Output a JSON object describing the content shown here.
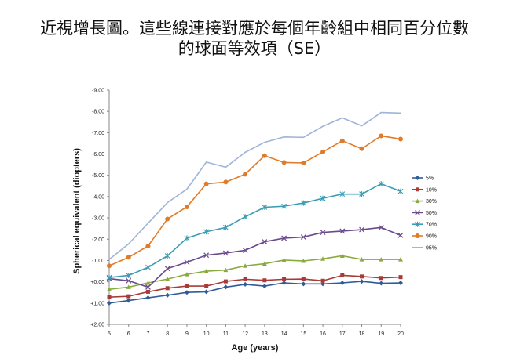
{
  "title_line1": "近視增長圖。這些線連接對應於每個年齡組中相同百分位數",
  "title_line2": "的球面等效項（SE）",
  "chart_data": {
    "type": "line",
    "title": "近視增長圖。這些線連接對應於每個年齡組中相同百分位數的球面等效項（SE）",
    "xlabel": "Age (years)",
    "ylabel": "Spherical equivalent (diopters)",
    "x": [
      5,
      6,
      7,
      8,
      9,
      10,
      11,
      12,
      13,
      14,
      15,
      16,
      17,
      18,
      19,
      20
    ],
    "ylim": [
      2.0,
      -9.0
    ],
    "y_inverted": true,
    "yticks": [
      -9,
      -8,
      -7,
      -6,
      -5,
      -4,
      -3,
      -2,
      -1,
      0,
      1,
      2
    ],
    "ytick_labels": [
      "-9.00",
      "-8.00",
      "-7.00",
      "-6.00",
      "-5.00",
      "-4.00",
      "-3.00",
      "-2.00",
      "-1.00",
      "+0.00",
      "+1.00",
      "+2.00"
    ],
    "grid": false,
    "legend_position": "right",
    "series": [
      {
        "name": "5%",
        "color": "#2e5b9a",
        "marker": "diamond",
        "values": [
          1.0,
          0.88,
          0.75,
          0.63,
          0.5,
          0.47,
          0.25,
          0.12,
          0.2,
          0.05,
          0.1,
          0.1,
          0.05,
          -0.02,
          0.07,
          0.05
        ]
      },
      {
        "name": "10%",
        "color": "#a93b37",
        "marker": "square",
        "values": [
          0.72,
          0.68,
          0.47,
          0.3,
          0.2,
          0.2,
          -0.02,
          -0.12,
          -0.07,
          -0.12,
          -0.13,
          -0.05,
          -0.3,
          -0.25,
          -0.18,
          -0.22
        ]
      },
      {
        "name": "30%",
        "color": "#8aaa3f",
        "marker": "triangle",
        "values": [
          0.35,
          0.25,
          0.05,
          -0.13,
          -0.35,
          -0.5,
          -0.55,
          -0.75,
          -0.85,
          -1.02,
          -0.98,
          -1.08,
          -1.22,
          -1.05,
          -1.05,
          -1.05
        ]
      },
      {
        "name": "50%",
        "color": "#6a4a8c",
        "marker": "x",
        "values": [
          -0.15,
          -0.05,
          0.25,
          -0.62,
          -0.92,
          -1.25,
          -1.35,
          -1.48,
          -1.88,
          -2.05,
          -2.1,
          -2.32,
          -2.38,
          -2.45,
          -2.55,
          -2.18
        ]
      },
      {
        "name": "70%",
        "color": "#3a9db4",
        "marker": "star",
        "values": [
          -0.2,
          -0.3,
          -0.68,
          -1.22,
          -2.05,
          -2.35,
          -2.55,
          -3.05,
          -3.5,
          -3.55,
          -3.7,
          -3.92,
          -4.12,
          -4.12,
          -4.6,
          -4.25
        ]
      },
      {
        "name": "90%",
        "color": "#e07b2a",
        "marker": "circle",
        "values": [
          -0.75,
          -1.15,
          -1.68,
          -2.95,
          -3.52,
          -4.6,
          -4.68,
          -5.05,
          -5.92,
          -5.6,
          -5.58,
          -6.1,
          -6.62,
          -6.25,
          -6.85,
          -6.7
        ]
      },
      {
        "name": "95%",
        "color": "#9fb4d8",
        "marker": "none",
        "values": [
          -1.05,
          -1.78,
          -2.75,
          -3.72,
          -4.35,
          -5.62,
          -5.38,
          -6.08,
          -6.55,
          -6.8,
          -6.78,
          -7.3,
          -7.7,
          -7.32,
          -7.95,
          -7.92
        ]
      }
    ]
  }
}
